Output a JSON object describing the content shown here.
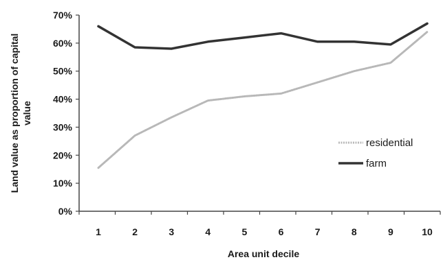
{
  "chart_data": {
    "type": "line",
    "title": "",
    "xlabel": "Area unit decile",
    "ylabel_lines": [
      "Land value as proportion of capital",
      "value"
    ],
    "x": [
      1,
      2,
      3,
      4,
      5,
      6,
      7,
      8,
      9,
      10
    ],
    "x_tick_labels": [
      "1",
      "2",
      "3",
      "4",
      "5",
      "6",
      "7",
      "8",
      "9",
      "10"
    ],
    "y_tick_labels": [
      "0%",
      "10%",
      "20%",
      "30%",
      "40%",
      "50%",
      "60%",
      "70%"
    ],
    "y_ticks": [
      0,
      10,
      20,
      30,
      40,
      50,
      60,
      70
    ],
    "ylim": [
      0,
      70
    ],
    "y_unit": "%",
    "grid": false,
    "legend_position": "right",
    "series": [
      {
        "name": "residential",
        "values": [
          15.5,
          27,
          33.5,
          39.5,
          41,
          42,
          46,
          50,
          53,
          64
        ],
        "color": "#b8b8b8",
        "style": "dotted-light"
      },
      {
        "name": "farm",
        "values": [
          66,
          58.5,
          58,
          60.5,
          62,
          63.5,
          60.5,
          60.5,
          59.5,
          67
        ],
        "color": "#333333",
        "style": "solid-thick"
      }
    ]
  }
}
